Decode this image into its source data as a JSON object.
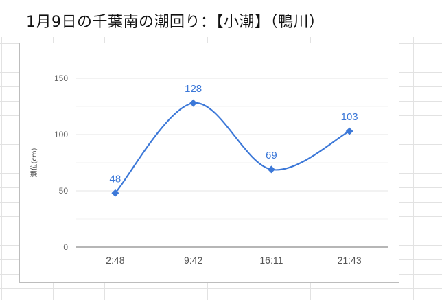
{
  "title": "1月9日の千葉南の潮回り：【小潮】（鴨川）",
  "colors": {
    "series": "#3c78d8",
    "grid": "#e6e6e6",
    "axis": "#9e9e9e"
  },
  "chart_data": {
    "type": "line",
    "title": "1月9日の千葉南の潮回り：【小潮】（鴨川）",
    "xlabel": "",
    "ylabel": "潮位(cm)",
    "categories": [
      "2:48",
      "9:42",
      "16:11",
      "21:43"
    ],
    "series": [
      {
        "values": [
          48,
          128,
          69,
          103
        ]
      }
    ],
    "ylim": [
      0,
      150
    ],
    "yticks": [
      0,
      50,
      100,
      150
    ],
    "smooth": true,
    "markers": "diamond",
    "data_labels": true,
    "grid": true,
    "legend": "none"
  }
}
